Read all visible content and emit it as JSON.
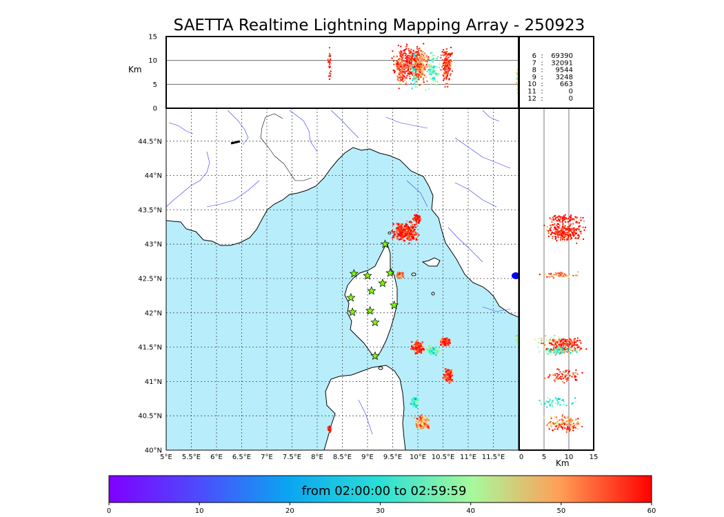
{
  "title": "SAETTA Realtime Lightning Mapping Array - 250923",
  "lon_labels": [
    "5°E",
    "5.5°E",
    "6°E",
    "6.5°E",
    "7°E",
    "7.5°E",
    "8°E",
    "8.5°E",
    "9°E",
    "9.5°E",
    "10°E",
    "10.5°E",
    "11°E",
    "11.5°E"
  ],
  "lat_labels": [
    "40°N",
    "40.5°N",
    "41°N",
    "41.5°N",
    "42°N",
    "42.5°N",
    "43°N",
    "43.5°N",
    "44°N",
    "44.5°N"
  ],
  "alt_ticks": [
    "0",
    "5",
    "10",
    "15"
  ],
  "alt_unit": "Km",
  "stats": [
    {
      "n": "6",
      "count": "69390",
      "color": "#ff0000"
    },
    {
      "n": "7",
      "count": "32091",
      "color": "#000000"
    },
    {
      "n": "8",
      "count": "9544",
      "color": "#000000"
    },
    {
      "n": "9",
      "count": "3248",
      "color": "#000000"
    },
    {
      "n": "10",
      "count": "663",
      "color": "#000000"
    },
    {
      "n": "11",
      "count": "0",
      "color": "#000000"
    },
    {
      "n": "12",
      "count": "0",
      "color": "#000000"
    }
  ],
  "colorbar": {
    "label": "from 02:00:00 to 02:59:59",
    "ticks": [
      "0",
      "10",
      "20",
      "30",
      "40",
      "50",
      "60"
    ]
  },
  "colors": {
    "sea": "#b8eefc",
    "coast": "#000000",
    "rivers": "#3333ff",
    "stations": "#7fff00"
  },
  "stations": [
    {
      "lon": 9.35,
      "lat": 43.0
    },
    {
      "lon": 8.73,
      "lat": 42.57
    },
    {
      "lon": 9.0,
      "lat": 42.54
    },
    {
      "lon": 9.45,
      "lat": 42.58
    },
    {
      "lon": 9.3,
      "lat": 42.43
    },
    {
      "lon": 9.08,
      "lat": 42.32
    },
    {
      "lon": 8.67,
      "lat": 42.22
    },
    {
      "lon": 9.53,
      "lat": 42.11
    },
    {
      "lon": 8.7,
      "lat": 42.01
    },
    {
      "lon": 9.05,
      "lat": 42.03
    },
    {
      "lon": 9.15,
      "lat": 41.86
    },
    {
      "lon": 9.15,
      "lat": 41.37
    }
  ],
  "lightning_clusters": [
    {
      "lon": 9.75,
      "lat": 43.18,
      "rx": 0.32,
      "ry": 0.18,
      "alt": 9,
      "t": 58,
      "n": 260
    },
    {
      "lon": 9.98,
      "lat": 43.37,
      "rx": 0.1,
      "ry": 0.07,
      "alt": 9,
      "t": 59,
      "n": 70
    },
    {
      "lon": 9.65,
      "lat": 42.55,
      "rx": 0.08,
      "ry": 0.06,
      "alt": 8,
      "t": 50,
      "n": 50
    },
    {
      "lon": 10.0,
      "lat": 41.5,
      "rx": 0.14,
      "ry": 0.12,
      "alt": 9,
      "t": 57,
      "n": 140
    },
    {
      "lon": 10.3,
      "lat": 41.45,
      "rx": 0.2,
      "ry": 0.08,
      "alt": 8,
      "t": 28,
      "n": 90
    },
    {
      "lon": 10.55,
      "lat": 41.57,
      "rx": 0.12,
      "ry": 0.08,
      "alt": 9,
      "t": 57,
      "n": 80
    },
    {
      "lon": 10.6,
      "lat": 41.08,
      "rx": 0.12,
      "ry": 0.13,
      "alt": 9,
      "t": 55,
      "n": 80
    },
    {
      "lon": 9.95,
      "lat": 40.7,
      "rx": 0.1,
      "ry": 0.1,
      "alt": 7,
      "t": 24,
      "n": 50
    },
    {
      "lon": 10.1,
      "lat": 40.4,
      "rx": 0.18,
      "ry": 0.12,
      "alt": 9,
      "t": 48,
      "n": 120
    },
    {
      "lon": 8.25,
      "lat": 40.3,
      "rx": 0.05,
      "ry": 0.07,
      "alt": 9,
      "t": 58,
      "n": 25
    },
    {
      "lon": 11.98,
      "lat": 41.6,
      "rx": 0.03,
      "ry": 0.1,
      "alt": 6,
      "t": 35,
      "n": 20
    }
  ]
}
